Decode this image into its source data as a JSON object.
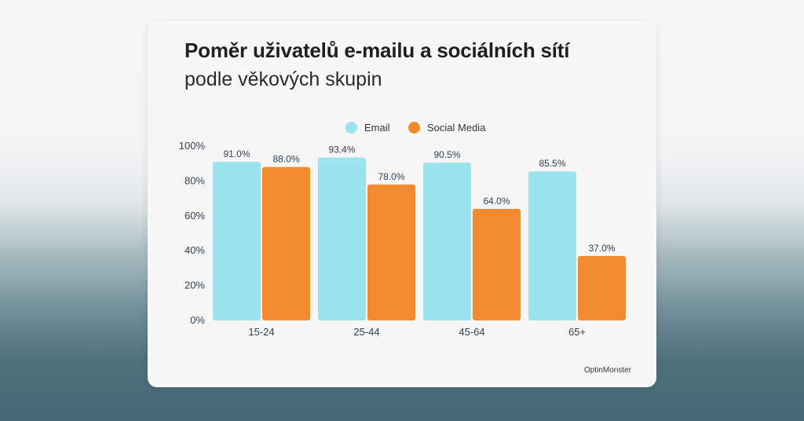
{
  "header": {
    "title": "Poměr uživatelů e-mailu a sociálních sítí",
    "subtitle": "podle věkových skupin"
  },
  "brand": "OptinMonster",
  "colors": {
    "email": "#9be3ee",
    "social": "#f28b30",
    "text": "#2f3f4f"
  },
  "chart_data": {
    "type": "bar",
    "categories": [
      "15-24",
      "25-44",
      "45-64",
      "65+"
    ],
    "series": [
      {
        "name": "Email",
        "values": [
          91.0,
          93.4,
          90.5,
          85.5
        ],
        "labels": [
          "91.0%",
          "93.4%",
          "90.5%",
          "85.5%"
        ]
      },
      {
        "name": "Social Media",
        "values": [
          88.0,
          78.0,
          64.0,
          37.0
        ],
        "labels": [
          "88.0%",
          "78.0%",
          "64.0%",
          "37.0%"
        ]
      }
    ],
    "ylim": [
      0,
      100
    ],
    "yticks": [
      0,
      20,
      40,
      60,
      80,
      100
    ],
    "ytick_labels": [
      "0%",
      "20%",
      "40%",
      "60%",
      "80%",
      "100%"
    ],
    "legend_position": "top-center",
    "grid": false
  }
}
